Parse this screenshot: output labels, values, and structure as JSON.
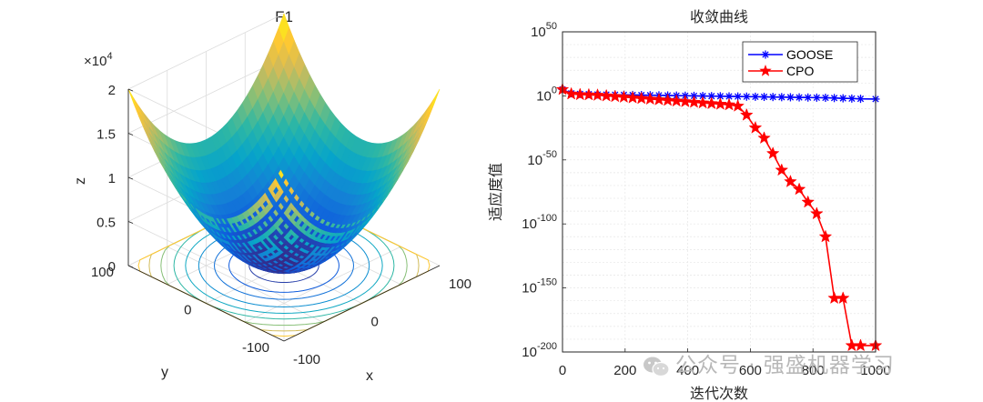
{
  "chart_data": [
    {
      "type": "surface3d",
      "title": "F1",
      "function": "sum of squares",
      "xlabel": "x",
      "ylabel": "y",
      "zlabel": "z",
      "x_range": [
        -100,
        100
      ],
      "y_range": [
        -100,
        100
      ],
      "z_range": [
        0,
        20000
      ],
      "x_ticks": [
        "-100",
        "0",
        "100"
      ],
      "y_ticks": [
        "-100",
        "0",
        "100"
      ],
      "z_ticks": [
        "0",
        "0.5",
        "1",
        "1.5",
        "2"
      ],
      "z_exponent_label": "×10",
      "z_exponent": "4",
      "contour_levels": [
        1000,
        2500,
        4000,
        6000,
        8000,
        10000,
        12500,
        15000,
        17500
      ],
      "colormap": [
        "#352a87",
        "#0f5cdd",
        "#1481d6",
        "#06a4ca",
        "#2eb7a4",
        "#87bf77",
        "#d1bb59",
        "#fec832",
        "#f9fb0e"
      ]
    },
    {
      "type": "line",
      "title": "收敛曲线",
      "xlabel": "迭代次数",
      "ylabel": "适应度值",
      "yscale": "log",
      "xlim": [
        0,
        1000
      ],
      "ylim_exponent": [
        -200,
        50
      ],
      "x_ticks": [
        "0",
        "200",
        "400",
        "600",
        "800",
        "1000"
      ],
      "y_tick_exponents": [
        "50",
        "0",
        "-50",
        "-100",
        "-150",
        "-200"
      ],
      "y_tick_base": "10",
      "legend_position": "top-right",
      "series": [
        {
          "name": "GOOSE",
          "color": "#0000ff",
          "marker": "asterisk",
          "x": [
            0,
            28,
            56,
            84,
            112,
            140,
            168,
            196,
            224,
            252,
            280,
            308,
            336,
            364,
            392,
            420,
            448,
            476,
            504,
            532,
            560,
            588,
            616,
            644,
            672,
            700,
            728,
            756,
            784,
            812,
            840,
            868,
            896,
            924,
            952,
            1000
          ],
          "log10_y": [
            5,
            2,
            1.5,
            1.3,
            1.1,
            1,
            0.9,
            0.8,
            0.7,
            0.6,
            0.5,
            0.4,
            0.3,
            0.2,
            0.1,
            0,
            -0.1,
            -0.2,
            -0.3,
            -0.4,
            -0.5,
            -0.6,
            -0.7,
            -0.8,
            -0.9,
            -1,
            -1.1,
            -1.2,
            -1.3,
            -1.4,
            -1.5,
            -1.7,
            -1.9,
            -2.1,
            -2.3,
            -2.5
          ]
        },
        {
          "name": "CPO",
          "color": "#ff0000",
          "marker": "pentagram",
          "x": [
            0,
            28,
            56,
            84,
            112,
            140,
            168,
            196,
            224,
            252,
            280,
            308,
            336,
            364,
            392,
            420,
            448,
            476,
            504,
            532,
            560,
            588,
            616,
            644,
            672,
            700,
            728,
            756,
            784,
            812,
            840,
            868,
            896,
            924,
            952,
            1000
          ],
          "log10_y": [
            5,
            1.5,
            1,
            0.8,
            0.5,
            0,
            -0.5,
            -1,
            -1.5,
            -2,
            -2.5,
            -3,
            -3.5,
            -4,
            -4.5,
            -5,
            -5.5,
            -6,
            -6.5,
            -7,
            -8,
            -15,
            -25,
            -33,
            -45,
            -58,
            -67,
            -73,
            -83,
            -92,
            -110,
            -158,
            -158,
            -195,
            -195,
            -195
          ]
        }
      ]
    }
  ],
  "watermark": {
    "text": "公众号 · 强盛机器学习"
  }
}
